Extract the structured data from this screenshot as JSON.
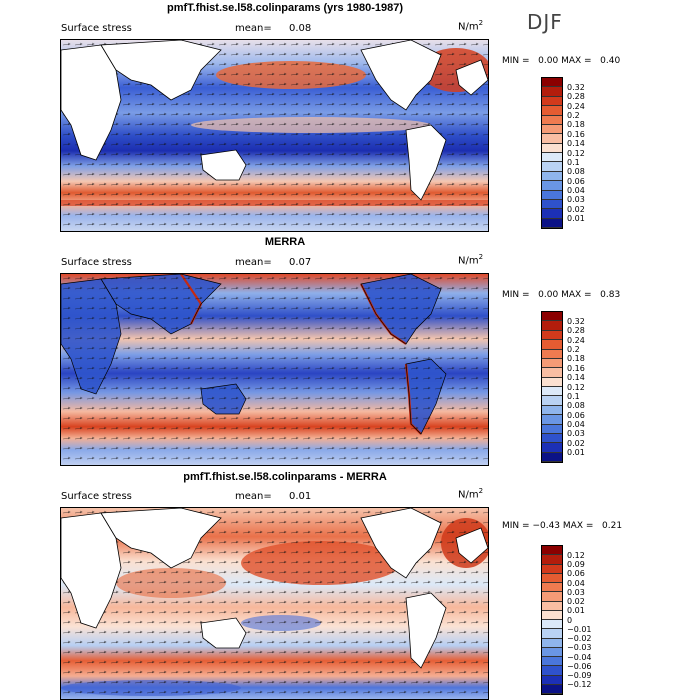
{
  "season": "DJF",
  "panels": [
    {
      "title": "pmfT.fhist.se.l58.colinparams (yrs 1980-1987)",
      "variable": "Surface stress",
      "mean_label": "mean=",
      "mean_value": "0.08",
      "units": "N/m",
      "units_sup": "2",
      "min_label": "MIN =",
      "min_value": "0.00",
      "max_label": "MAX =",
      "max_value": "0.40",
      "colorbar": {
        "labels": [
          "0.32",
          "0.28",
          "0.24",
          "0.2",
          "0.18",
          "0.16",
          "0.14",
          "0.12",
          "0.1",
          "0.08",
          "0.06",
          "0.04",
          "0.03",
          "0.02",
          "0.01"
        ],
        "colors": [
          "#8b0000",
          "#b31d0c",
          "#d23a1c",
          "#e55c32",
          "#ef7b50",
          "#f59b76",
          "#f9bea3",
          "#fbe0d0",
          "#dce9f8",
          "#b9d2f3",
          "#8fb5ec",
          "#6a96e4",
          "#4a76db",
          "#2f52cc",
          "#1c30b6",
          "#0b1286"
        ]
      }
    },
    {
      "title": "MERRA",
      "variable": "Surface stress",
      "mean_label": "mean=",
      "mean_value": "0.07",
      "units": "N/m",
      "units_sup": "2",
      "min_label": "MIN =",
      "min_value": "0.00",
      "max_label": "MAX =",
      "max_value": "0.83",
      "colorbar": {
        "labels": [
          "0.32",
          "0.28",
          "0.24",
          "0.2",
          "0.18",
          "0.16",
          "0.14",
          "0.12",
          "0.1",
          "0.08",
          "0.06",
          "0.04",
          "0.03",
          "0.02",
          "0.01"
        ],
        "colors": [
          "#8b0000",
          "#b31d0c",
          "#d23a1c",
          "#e55c32",
          "#ef7b50",
          "#f59b76",
          "#f9bea3",
          "#fbe0d0",
          "#dce9f8",
          "#b9d2f3",
          "#8fb5ec",
          "#6a96e4",
          "#4a76db",
          "#2f52cc",
          "#1c30b6",
          "#0b1286"
        ]
      }
    },
    {
      "title": "pmfT.fhist.se.l58.colinparams - MERRA",
      "variable": "Surface stress",
      "mean_label": "mean=",
      "mean_value": "0.01",
      "units": "N/m",
      "units_sup": "2",
      "min_label": "MIN =",
      "min_value": "−0.43",
      "max_label": "MAX =",
      "max_value": "0.21",
      "colorbar": {
        "labels": [
          "0.12",
          "0.09",
          "0.06",
          "0.04",
          "0.03",
          "0.02",
          "0.01",
          "0",
          "−0.01",
          "−0.02",
          "−0.03",
          "−0.04",
          "−0.06",
          "−0.09",
          "−0.12"
        ],
        "colors": [
          "#8b0000",
          "#b31d0c",
          "#d23a1c",
          "#e55c32",
          "#ef7b50",
          "#f59b76",
          "#f9bea3",
          "#fbe0d0",
          "#dce9f8",
          "#b9d2f3",
          "#8fb5ec",
          "#6a96e4",
          "#4a76db",
          "#2f52cc",
          "#1c30b6",
          "#0b1286"
        ]
      }
    }
  ]
}
